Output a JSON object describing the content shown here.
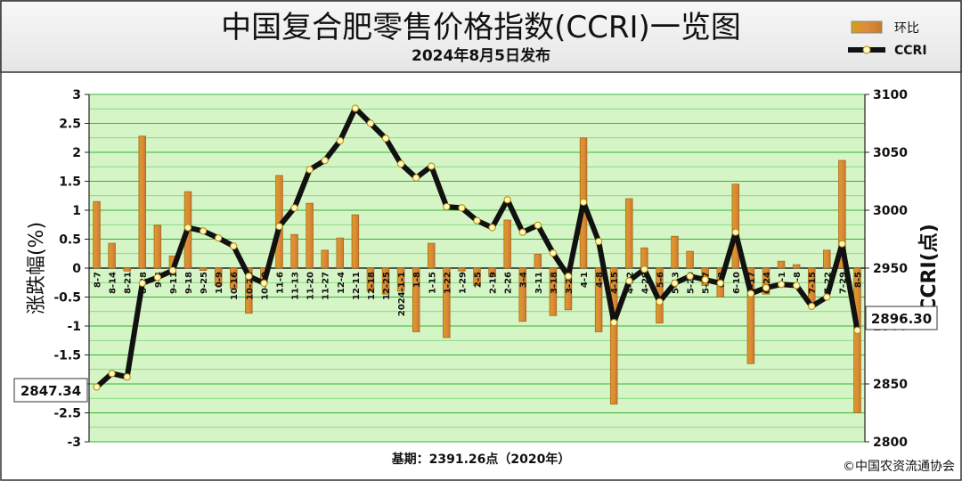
{
  "chart_data": {
    "type": "bar+line",
    "title": "中国复合肥零售价格指数(CCRI)一览图",
    "subtitle": "2024年8月5日发布",
    "ylabel_left": "涨跌幅(%)",
    "ylabel_right": "CCRI(点)",
    "footer": "基期：2391.26点（2020年）",
    "copyright": "©中国农资流通协会",
    "legend_bar": "环比",
    "legend_line": "CCRI",
    "legend_position": "top-right",
    "grid": true,
    "ylim_left": [
      -3,
      3
    ],
    "yticks_left": [
      "3",
      "2.5",
      "2",
      "1.5",
      "1",
      "0.5",
      "0",
      "-0.5",
      "-1",
      "-1.5",
      "-2",
      "-2.5",
      "-3"
    ],
    "ylim_right": [
      2800,
      3100
    ],
    "yticks_right": [
      "3100",
      "3050",
      "3000",
      "2950",
      "2900",
      "2850",
      "2800"
    ],
    "start_label": "2847.34",
    "end_label": "2896.30",
    "categories": [
      "8-7",
      "8-14",
      "8-21",
      "8-28",
      "9-4",
      "9-11",
      "9-18",
      "9-25",
      "10-9",
      "10-16",
      "10-23",
      "10-30",
      "11-6",
      "11-13",
      "11-20",
      "11-27",
      "12-4",
      "12-11",
      "12-18",
      "12-25",
      "2024-1-1",
      "1-8",
      "1-15",
      "1-22",
      "1-29",
      "2-5",
      "2-19",
      "2-26",
      "3-4",
      "3-11",
      "3-18",
      "3-25",
      "4-1",
      "4-8",
      "4-15",
      "4-22",
      "4-29",
      "5-6",
      "5-13",
      "5-20",
      "5-27",
      "6-3",
      "6-10",
      "6-17",
      "6-24",
      "7-1",
      "7-8",
      "7-15",
      "7-22",
      "7-29",
      "8-5"
    ],
    "series": [
      {
        "name": "环比",
        "type": "bar",
        "values": [
          1.15,
          0.43,
          -0.05,
          2.28,
          0.74,
          0.21,
          1.32,
          -0.04,
          -0.3,
          -0.35,
          -0.78,
          -0.2,
          1.6,
          0.58,
          1.12,
          0.31,
          0.52,
          0.92,
          -0.4,
          -0.45,
          -0.4,
          -1.1,
          0.43,
          -1.2,
          -0.05,
          -0.3,
          -0.15,
          0.83,
          -0.92,
          0.24,
          -0.82,
          -0.72,
          2.25,
          -1.1,
          -2.35,
          1.2,
          0.35,
          -0.95,
          0.55,
          0.29,
          -0.3,
          -0.5,
          1.45,
          -1.65,
          -0.45,
          0.12,
          0.06,
          -0.6,
          0.31,
          1.86,
          -2.5
        ]
      },
      {
        "name": "CCRI",
        "type": "line",
        "values": [
          2847.34,
          2859,
          2856,
          2937,
          2942,
          2948,
          2985,
          2982,
          2976,
          2969,
          2943,
          2937,
          2986,
          3002,
          3035,
          3043,
          3060,
          3088,
          3075,
          3062,
          3040,
          3028,
          3038,
          3003,
          3002,
          2991,
          2985,
          3009,
          2981,
          2987,
          2963,
          2943,
          3007,
          2973,
          2903,
          2939,
          2949,
          2921,
          2937,
          2943,
          2940,
          2937,
          2981,
          2928,
          2933,
          2936,
          2935,
          2917,
          2925,
          2971,
          2896.3
        ]
      }
    ]
  }
}
